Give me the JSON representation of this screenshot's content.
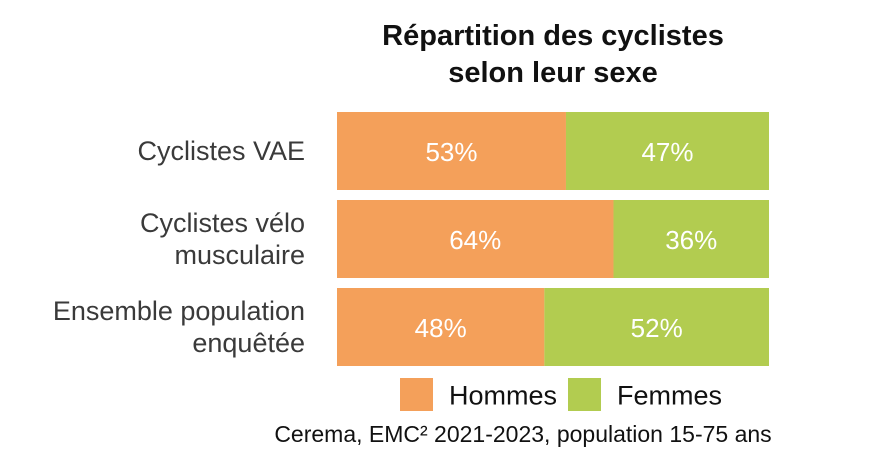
{
  "chart_data": {
    "type": "bar",
    "orientation": "horizontal",
    "stacked": true,
    "normalized_percent": true,
    "title": [
      "Répartition des cyclistes",
      "selon leur sexe"
    ],
    "categories": [
      [
        "Cyclistes VAE"
      ],
      [
        "Cyclistes vélo",
        "musculaire"
      ],
      [
        "Ensemble population",
        "enquêtée"
      ]
    ],
    "series": [
      {
        "name": "Hommes",
        "values": [
          53,
          64,
          48
        ],
        "color": "#f4a05a"
      },
      {
        "name": "Femmes",
        "values": [
          47,
          36,
          52
        ],
        "color": "#b2cc50"
      }
    ],
    "value_labels_suffix": "%",
    "xlim": [
      0,
      100
    ],
    "grid": false,
    "legend": "bottom",
    "source": "Cerema, EMC² 2021-2023, population 15-75 ans"
  }
}
